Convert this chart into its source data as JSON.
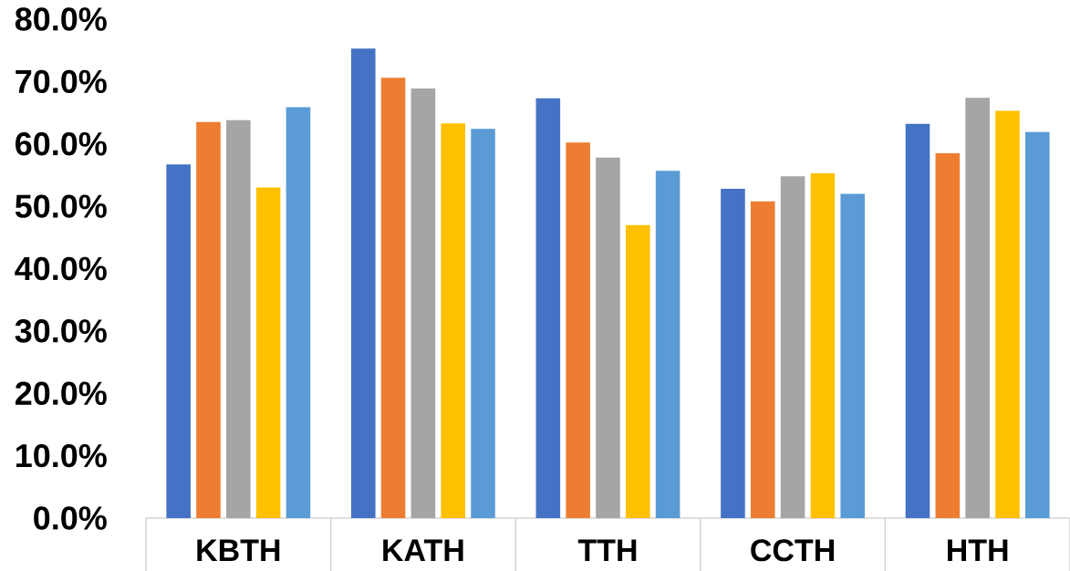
{
  "chart_data": {
    "type": "bar",
    "categories": [
      "KBTH",
      "KATH",
      "TTH",
      "CCTH",
      "HTH"
    ],
    "series": [
      {
        "color": "#4472c4",
        "values": [
          56.7,
          75.3,
          67.3,
          52.8,
          63.2
        ]
      },
      {
        "color": "#ed7d31",
        "values": [
          63.5,
          70.6,
          60.2,
          50.8,
          58.5
        ]
      },
      {
        "color": "#a5a5a5",
        "values": [
          63.8,
          68.9,
          57.8,
          54.8,
          67.4
        ]
      },
      {
        "color": "#ffc000",
        "values": [
          53.0,
          63.3,
          47.0,
          55.3,
          65.3
        ]
      },
      {
        "color": "#5b9bd5",
        "values": [
          65.9,
          62.4,
          55.7,
          52.0,
          61.9
        ]
      }
    ],
    "ylim": [
      0,
      80
    ],
    "yticks": [
      {
        "value": 0,
        "label": "0.0%"
      },
      {
        "value": 10,
        "label": "10.0%"
      },
      {
        "value": 20,
        "label": "20.0%"
      },
      {
        "value": 30,
        "label": "30.0%"
      },
      {
        "value": 40,
        "label": "40.0%"
      },
      {
        "value": 50,
        "label": "50.0%"
      },
      {
        "value": 60,
        "label": "60.0%"
      },
      {
        "value": 70,
        "label": "70.0%"
      },
      {
        "value": 80,
        "label": "80.0%"
      }
    ]
  }
}
